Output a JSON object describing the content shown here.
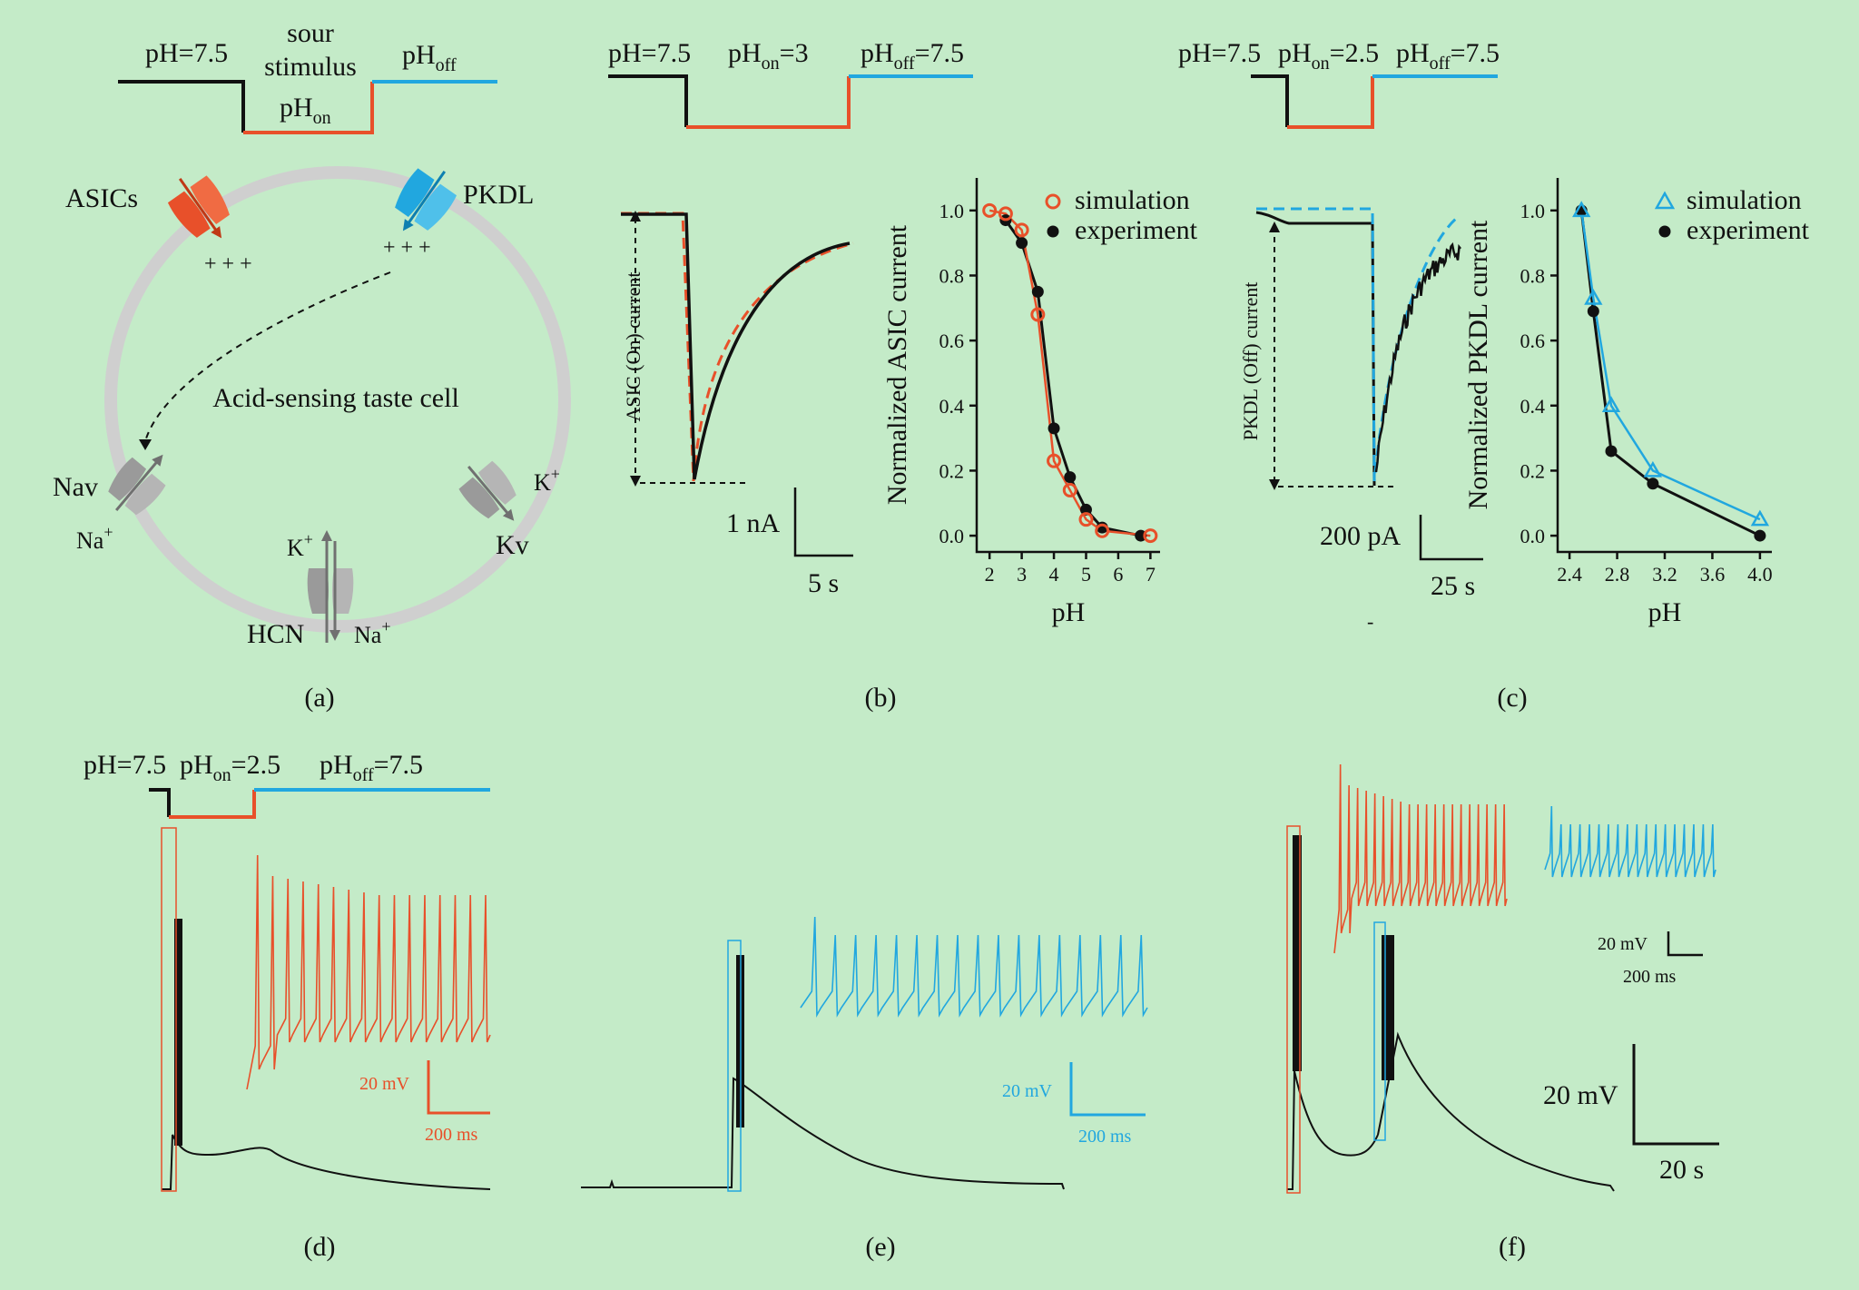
{
  "colors": {
    "background": "#c4ebc8",
    "asic": "#e8502a",
    "pkdl": "#21a7df",
    "black": "#111111",
    "membrane": "#cfcfcf",
    "channel_gray": "#8c8c8c"
  },
  "panel_a": {
    "caption": "(a)",
    "protocol": {
      "ph_start": "pH=7.5",
      "stim_top": "sour",
      "stim_mid": "stimulus",
      "ph_on_base": "pH",
      "ph_on_sub": "on",
      "ph_off_base": "pH",
      "ph_off_sub": "off"
    },
    "cell_label": "Acid-sensing taste cell",
    "channels": {
      "asic": "ASICs",
      "pkdl": "PKDL",
      "nav": "Nav",
      "kv": "Kv",
      "hcn": "HCN"
    },
    "ions": {
      "na": "Na",
      "k": "K",
      "plus": "+",
      "charges": "+  +  +"
    }
  },
  "panel_b": {
    "caption": "(b)",
    "protocol": {
      "ph_start": "pH=7.5",
      "ph_on_base": "pH",
      "ph_on_sub": "on",
      "ph_on_val": "=3",
      "ph_off_base": "pH",
      "ph_off_sub": "off",
      "ph_off_val": "=7.5"
    },
    "trace_ylabel": "ASIC (On) current",
    "scale_y": "1 nA",
    "scale_x": "5 s",
    "chart_data": {
      "type": "line",
      "xlabel": "pH",
      "ylabel": "Normalized ASIC current",
      "xlim": [
        1.6,
        7.3
      ],
      "ylim": [
        -0.05,
        1.1
      ],
      "xticks": [
        "2",
        "3",
        "4",
        "5",
        "6",
        "7"
      ],
      "yticks": [
        "0.0",
        "0.2",
        "0.4",
        "0.6",
        "0.8",
        "1.0"
      ],
      "legend": [
        "simulation",
        "experiment"
      ],
      "series": [
        {
          "name": "simulation",
          "x": [
            2.0,
            2.5,
            3.0,
            3.5,
            4.0,
            4.5,
            5.0,
            5.5,
            7.0
          ],
          "y": [
            1.0,
            0.99,
            0.94,
            0.68,
            0.23,
            0.14,
            0.05,
            0.015,
            0.0
          ]
        },
        {
          "name": "experiment",
          "x": [
            2.5,
            3.0,
            3.5,
            4.0,
            4.5,
            5.0,
            5.5,
            6.7
          ],
          "y": [
            0.97,
            0.9,
            0.75,
            0.33,
            0.18,
            0.08,
            0.025,
            0.0
          ]
        }
      ]
    }
  },
  "panel_c": {
    "caption": "(c)",
    "protocol": {
      "ph_start": "pH=7.5",
      "ph_on_base": "pH",
      "ph_on_sub": "on",
      "ph_on_val": "=2.5",
      "ph_off_base": "pH",
      "ph_off_sub": "off",
      "ph_off_val": "=7.5"
    },
    "trace_ylabel": "PKDL (Off) current",
    "scale_y": "200 pA",
    "scale_x": "25 s",
    "chart_data": {
      "type": "line",
      "xlabel": "pH",
      "ylabel": "Normalized PKDL current",
      "xlim": [
        2.3,
        4.1
      ],
      "ylim": [
        -0.05,
        1.1
      ],
      "xticks": [
        "2.4",
        "2.8",
        "3.2",
        "3.6",
        "4.0"
      ],
      "yticks": [
        "0.0",
        "0.2",
        "0.4",
        "0.6",
        "0.8",
        "1.0"
      ],
      "legend": [
        "simulation",
        "experiment"
      ],
      "series": [
        {
          "name": "simulation",
          "x": [
            2.5,
            2.6,
            2.75,
            3.1,
            4.0
          ],
          "y": [
            1.0,
            0.73,
            0.4,
            0.2,
            0.05
          ]
        },
        {
          "name": "experiment",
          "x": [
            2.5,
            2.6,
            2.75,
            3.1,
            4.0
          ],
          "y": [
            1.0,
            0.69,
            0.26,
            0.16,
            0.0
          ]
        }
      ]
    }
  },
  "panel_d": {
    "caption": "(d)",
    "protocol": {
      "ph_start": "pH=7.5",
      "ph_on_base": "pH",
      "ph_on_sub": "on",
      "ph_on_val": "=2.5",
      "ph_off_base": "pH",
      "ph_off_sub": "off",
      "ph_off_val": "=7.5"
    },
    "scale_y": "20 mV",
    "scale_x": "200 ms"
  },
  "panel_e": {
    "caption": "(e)",
    "scale_y": "20 mV",
    "scale_x": "200 ms"
  },
  "panel_f": {
    "caption": "(f)",
    "inset_scale_y": "20 mV",
    "inset_scale_x": "200 ms",
    "scale_y": "20 mV",
    "scale_x": "20 s"
  }
}
